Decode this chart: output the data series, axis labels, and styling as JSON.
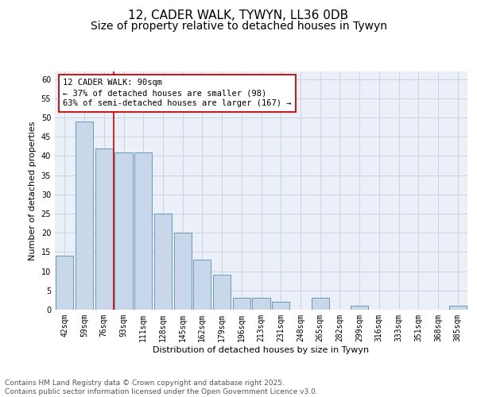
{
  "title_line1": "12, CADER WALK, TYWYN, LL36 0DB",
  "title_line2": "Size of property relative to detached houses in Tywyn",
  "xlabel": "Distribution of detached houses by size in Tywyn",
  "ylabel": "Number of detached properties",
  "categories": [
    "42sqm",
    "59sqm",
    "76sqm",
    "93sqm",
    "111sqm",
    "128sqm",
    "145sqm",
    "162sqm",
    "179sqm",
    "196sqm",
    "213sqm",
    "231sqm",
    "248sqm",
    "265sqm",
    "282sqm",
    "299sqm",
    "316sqm",
    "333sqm",
    "351sqm",
    "368sqm",
    "385sqm"
  ],
  "values": [
    14,
    49,
    42,
    41,
    41,
    25,
    20,
    13,
    9,
    3,
    3,
    2,
    0,
    3,
    0,
    1,
    0,
    0,
    0,
    0,
    1
  ],
  "bar_color": "#c8d8ea",
  "bar_edge_color": "#6699bb",
  "grid_color": "#c5cfe0",
  "background_color": "#eaeff8",
  "annotation_line1": "12 CADER WALK: 90sqm",
  "annotation_line2": "← 37% of detached houses are smaller (98)",
  "annotation_line3": "63% of semi-detached houses are larger (167) →",
  "annotation_box_color": "#ffffff",
  "annotation_box_edge_color": "#cc0000",
  "vline_color": "#cc0000",
  "vline_x_idx": 2.5,
  "ylim": [
    0,
    62
  ],
  "yticks": [
    0,
    5,
    10,
    15,
    20,
    25,
    30,
    35,
    40,
    45,
    50,
    55,
    60
  ],
  "footer_text": "Contains HM Land Registry data © Crown copyright and database right 2025.\nContains public sector information licensed under the Open Government Licence v3.0.",
  "title_fontsize": 11,
  "subtitle_fontsize": 10,
  "axis_label_fontsize": 8,
  "tick_fontsize": 7,
  "annotation_fontsize": 7.5,
  "footer_fontsize": 6.5
}
